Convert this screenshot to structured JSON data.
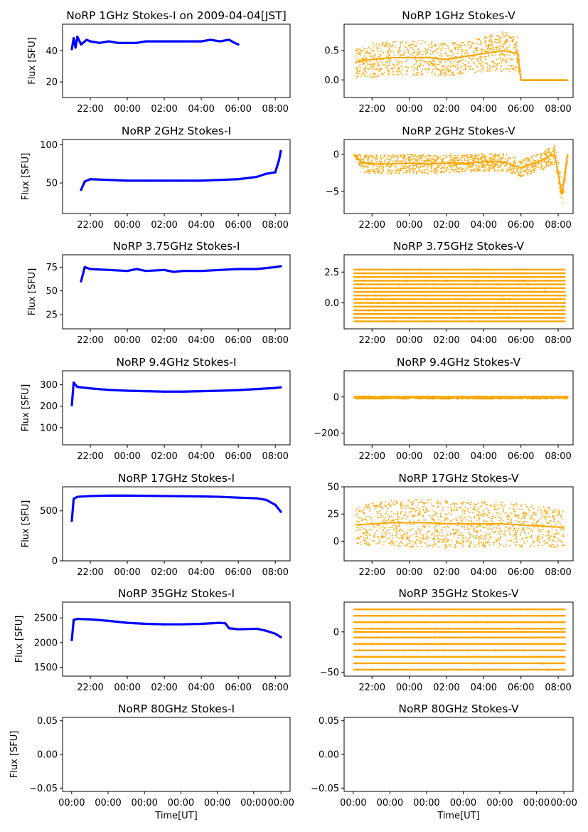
{
  "figure": {
    "date_label": "2009-04-04[JST]",
    "colors": {
      "stokes_i": "#0000ff",
      "stokes_v": "#ffa500"
    }
  },
  "chart_data": [
    {
      "type": "scatter",
      "id": "p1i",
      "title": "NoRP 1GHz Stokes-I on 2009-04-04[JST]",
      "ylabel": "Flux [SFU]",
      "xlabel": "",
      "xlim": [
        20.5,
        32.8
      ],
      "ylim": [
        10,
        57
      ],
      "yticks": [
        20,
        40
      ],
      "ytick_labels": [
        "20",
        "40"
      ],
      "xticks": [
        22,
        24,
        26,
        28,
        30,
        32
      ],
      "xtick_labels": [
        "22:00",
        "00:00",
        "02:00",
        "04:00",
        "06:00",
        "08:00"
      ],
      "series": [
        {
          "name": "Stokes-I",
          "color": "#0000ff",
          "x": [
            21.0,
            21.1,
            21.2,
            21.3,
            21.5,
            21.8,
            22.0,
            22.5,
            23.0,
            23.5,
            24.0,
            24.5,
            25.0,
            25.5,
            26.0,
            26.5,
            27.0,
            27.5,
            28.0,
            28.5,
            29.0,
            29.5,
            29.8,
            30.0
          ],
          "y": [
            41,
            48,
            42,
            49,
            44,
            47,
            46,
            45,
            46,
            45,
            45,
            45,
            46,
            46,
            46,
            46,
            46,
            46,
            46,
            47,
            46,
            47,
            45,
            44
          ]
        }
      ]
    },
    {
      "type": "scatter",
      "id": "p1v",
      "title": "NoRP 1GHz Stokes-V",
      "ylabel": "",
      "xlabel": "",
      "xlim": [
        20.5,
        32.8
      ],
      "ylim": [
        -0.3,
        0.95
      ],
      "yticks": [
        0,
        0.5
      ],
      "ytick_labels": [
        "0.0",
        "0.5"
      ],
      "xticks": [
        22,
        24,
        26,
        28,
        30,
        32
      ],
      "xtick_labels": [
        "22:00",
        "00:00",
        "02:00",
        "04:00",
        "06:00",
        "08:00"
      ],
      "series": [
        {
          "name": "Stokes-V",
          "color": "#ffa500",
          "x": [
            21.1,
            22.0,
            23.0,
            24.0,
            25.0,
            26.0,
            27.0,
            28.0,
            29.0,
            29.8,
            30.0,
            31.0,
            32.0,
            32.5
          ],
          "y": [
            0.3,
            0.35,
            0.38,
            0.38,
            0.38,
            0.35,
            0.4,
            0.45,
            0.5,
            0.45,
            0.0,
            0.0,
            0.0,
            0.0
          ],
          "spread": [
            0.25,
            0.3,
            0.3,
            0.3,
            0.3,
            0.28,
            0.28,
            0.3,
            0.35,
            0.3,
            0,
            0,
            0,
            0
          ]
        }
      ]
    },
    {
      "type": "scatter",
      "id": "p2i",
      "title": "NoRP 2GHz Stokes-I",
      "ylabel": "Flux [SFU]",
      "xlabel": "",
      "xlim": [
        20.5,
        32.8
      ],
      "ylim": [
        10,
        107
      ],
      "yticks": [
        50,
        100
      ],
      "ytick_labels": [
        "50",
        "100"
      ],
      "xticks": [
        22,
        24,
        26,
        28,
        30,
        32
      ],
      "xtick_labels": [
        "22:00",
        "00:00",
        "02:00",
        "04:00",
        "06:00",
        "08:00"
      ],
      "series": [
        {
          "name": "Stokes-I",
          "color": "#0000ff",
          "x": [
            21.5,
            21.7,
            22.0,
            23.0,
            24.0,
            25.0,
            26.0,
            27.0,
            28.0,
            29.0,
            30.0,
            31.0,
            31.5,
            32.0,
            32.2,
            32.3
          ],
          "y": [
            41,
            52,
            55,
            54,
            53,
            53,
            53,
            53,
            53,
            54,
            55,
            58,
            62,
            64,
            80,
            92
          ]
        }
      ]
    },
    {
      "type": "scatter",
      "id": "p2v",
      "title": "NoRP 2GHz Stokes-V",
      "ylabel": "",
      "xlabel": "",
      "xlim": [
        20.5,
        32.8
      ],
      "ylim": [
        -8,
        2
      ],
      "yticks": [
        -5,
        0
      ],
      "ytick_labels": [
        "−5",
        "0"
      ],
      "xticks": [
        22,
        24,
        26,
        28,
        30,
        32
      ],
      "xtick_labels": [
        "22:00",
        "00:00",
        "02:00",
        "04:00",
        "06:00",
        "08:00"
      ],
      "series": [
        {
          "name": "Stokes-V",
          "color": "#ffa500",
          "x": [
            21.0,
            21.5,
            22.0,
            23.0,
            24.0,
            25.0,
            26.0,
            27.0,
            28.0,
            29.0,
            30.0,
            31.0,
            31.5,
            31.8,
            32.0,
            32.2,
            32.5
          ],
          "y": [
            0.0,
            -1.2,
            -1.3,
            -1.3,
            -1.2,
            -1.3,
            -1.2,
            -1.2,
            -1.0,
            -1.0,
            -1.8,
            -1.0,
            -0.3,
            0.0,
            -2.5,
            -5.5,
            0.0
          ],
          "spread": [
            0,
            1.2,
            1.3,
            1.3,
            1.3,
            1.3,
            1.2,
            1.2,
            1.2,
            1.2,
            1.2,
            1.2,
            1.2,
            1.3,
            1.5,
            1.5,
            0
          ]
        }
      ]
    },
    {
      "type": "scatter",
      "id": "p3i",
      "title": "NoRP 3.75GHz Stokes-I",
      "ylabel": "Flux [SFU]",
      "xlabel": "",
      "xlim": [
        20.5,
        32.8
      ],
      "ylim": [
        10,
        88
      ],
      "yticks": [
        25,
        50,
        75
      ],
      "ytick_labels": [
        "25",
        "50",
        "75"
      ],
      "xticks": [
        22,
        24,
        26,
        28,
        30,
        32
      ],
      "xtick_labels": [
        "22:00",
        "00:00",
        "02:00",
        "04:00",
        "06:00",
        "08:00"
      ],
      "series": [
        {
          "name": "Stokes-I",
          "color": "#0000ff",
          "x": [
            21.5,
            21.7,
            22.0,
            23.0,
            24.0,
            24.5,
            25.0,
            26.0,
            26.5,
            27.0,
            28.0,
            29.0,
            30.0,
            31.0,
            32.0,
            32.3
          ],
          "y": [
            60,
            75,
            73,
            72,
            71,
            73,
            71,
            72,
            70,
            71,
            71,
            72,
            73,
            73,
            75,
            76
          ]
        }
      ]
    },
    {
      "type": "scatter",
      "id": "p3v",
      "title": "NoRP 3.75GHz Stokes-V",
      "ylabel": "",
      "xlabel": "",
      "xlim": [
        20.5,
        32.8
      ],
      "ylim": [
        -2.1,
        3.9
      ],
      "yticks": [
        0,
        2.5
      ],
      "ytick_labels": [
        "0.0",
        "2.5"
      ],
      "xticks": [
        22,
        24,
        26,
        28,
        30,
        32
      ],
      "xtick_labels": [
        "22:00",
        "00:00",
        "02:00",
        "04:00",
        "06:00",
        "08:00"
      ],
      "series": [
        {
          "name": "Stokes-V",
          "color": "#ffa500",
          "levels": [
            -1.5,
            -1.2,
            -0.9,
            -0.6,
            -0.3,
            0.0,
            0.3,
            0.6,
            0.9,
            1.2,
            1.5,
            1.8,
            2.1,
            2.4,
            2.7
          ],
          "x_from": 21.0,
          "x_to": 32.4
        }
      ]
    },
    {
      "type": "scatter",
      "id": "p4i",
      "title": "NoRP 9.4GHz Stokes-I",
      "ylabel": "Flux [SFU]",
      "xlabel": "",
      "xlim": [
        20.5,
        32.8
      ],
      "ylim": [
        20,
        365
      ],
      "yticks": [
        100,
        200,
        300
      ],
      "ytick_labels": [
        "100",
        "200",
        "300"
      ],
      "xticks": [
        22,
        24,
        26,
        28,
        30,
        32
      ],
      "xtick_labels": [
        "22:00",
        "00:00",
        "02:00",
        "04:00",
        "06:00",
        "08:00"
      ],
      "series": [
        {
          "name": "Stokes-I",
          "color": "#0000ff",
          "x": [
            21.0,
            21.1,
            21.3,
            22.0,
            23.0,
            24.0,
            25.0,
            26.0,
            27.0,
            28.0,
            29.0,
            30.0,
            31.0,
            32.0,
            32.3
          ],
          "y": [
            205,
            310,
            290,
            283,
            276,
            272,
            270,
            268,
            268,
            270,
            272,
            275,
            280,
            285,
            288
          ]
        }
      ]
    },
    {
      "type": "scatter",
      "id": "p4v",
      "title": "NoRP 9.4GHz Stokes-V",
      "ylabel": "",
      "xlabel": "",
      "xlim": [
        20.5,
        32.8
      ],
      "ylim": [
        -265,
        145
      ],
      "yticks": [
        -200,
        0
      ],
      "ytick_labels": [
        "−200",
        "0"
      ],
      "xticks": [
        22,
        24,
        26,
        28,
        30,
        32
      ],
      "xtick_labels": [
        "22:00",
        "00:00",
        "02:00",
        "04:00",
        "06:00",
        "08:00"
      ],
      "series": [
        {
          "name": "Stokes-V",
          "color": "#ffa500",
          "x": [
            21.0,
            22.0,
            24.0,
            26.0,
            28.0,
            30.0,
            32.0,
            32.5
          ],
          "y": [
            0,
            0,
            0,
            0,
            0,
            0,
            0,
            0
          ],
          "spread": [
            8,
            8,
            8,
            8,
            8,
            8,
            8,
            8
          ]
        }
      ]
    },
    {
      "type": "scatter",
      "id": "p5i",
      "title": "NoRP 17GHz Stokes-I",
      "ylabel": "Flux [SFU]",
      "xlabel": "",
      "xlim": [
        20.5,
        32.8
      ],
      "ylim": [
        0,
        740
      ],
      "yticks": [
        0,
        500
      ],
      "ytick_labels": [
        "0",
        "500"
      ],
      "xticks": [
        22,
        24,
        26,
        28,
        30,
        32
      ],
      "xtick_labels": [
        "22:00",
        "00:00",
        "02:00",
        "04:00",
        "06:00",
        "08:00"
      ],
      "series": [
        {
          "name": "Stokes-I",
          "color": "#0000ff",
          "x": [
            21.0,
            21.1,
            21.3,
            22.0,
            23.0,
            24.0,
            25.0,
            26.0,
            27.0,
            28.0,
            29.0,
            30.0,
            31.0,
            31.5,
            32.0,
            32.3
          ],
          "y": [
            400,
            620,
            640,
            648,
            652,
            652,
            650,
            648,
            646,
            644,
            640,
            632,
            625,
            610,
            560,
            490
          ]
        }
      ]
    },
    {
      "type": "scatter",
      "id": "p5v",
      "title": "NoRP 17GHz Stokes-V",
      "ylabel": "",
      "xlabel": "",
      "xlim": [
        20.5,
        32.8
      ],
      "ylim": [
        -18,
        50
      ],
      "yticks": [
        0,
        25,
        50
      ],
      "ytick_labels": [
        "0",
        "25",
        "50"
      ],
      "xticks": [
        22,
        24,
        26,
        28,
        30,
        32
      ],
      "xtick_labels": [
        "22:00",
        "00:00",
        "02:00",
        "04:00",
        "06:00",
        "08:00"
      ],
      "series": [
        {
          "name": "Stokes-V",
          "color": "#ffa500",
          "x": [
            21.1,
            22.0,
            23.0,
            24.0,
            25.0,
            26.0,
            27.0,
            28.0,
            29.0,
            30.0,
            31.0,
            32.0,
            32.3
          ],
          "y": [
            15,
            16,
            17,
            17,
            17,
            16,
            16,
            16,
            16,
            15,
            14,
            13,
            12
          ],
          "spread": [
            18,
            20,
            21,
            22,
            22,
            22,
            21,
            21,
            21,
            20,
            19,
            18,
            17
          ]
        }
      ]
    },
    {
      "type": "scatter",
      "id": "p6i",
      "title": "NoRP 35GHz Stokes-I",
      "ylabel": "Flux [SFU]",
      "xlabel": "",
      "xlim": [
        20.5,
        32.8
      ],
      "ylim": [
        1320,
        2820
      ],
      "yticks": [
        1500,
        2000,
        2500
      ],
      "ytick_labels": [
        "1500",
        "2000",
        "2500"
      ],
      "xticks": [
        22,
        24,
        26,
        28,
        30,
        32
      ],
      "xtick_labels": [
        "22:00",
        "00:00",
        "02:00",
        "04:00",
        "06:00",
        "08:00"
      ],
      "series": [
        {
          "name": "Stokes-I",
          "color": "#0000ff",
          "x": [
            21.0,
            21.1,
            21.3,
            22.0,
            23.0,
            24.0,
            25.0,
            26.0,
            27.0,
            28.0,
            29.0,
            29.3,
            29.5,
            30.0,
            31.0,
            31.5,
            32.0,
            32.3
          ],
          "y": [
            2050,
            2460,
            2480,
            2470,
            2440,
            2400,
            2380,
            2370,
            2370,
            2380,
            2400,
            2390,
            2290,
            2270,
            2280,
            2240,
            2180,
            2110
          ]
        }
      ]
    },
    {
      "type": "scatter",
      "id": "p6v",
      "title": "NoRP 35GHz Stokes-V",
      "ylabel": "",
      "xlabel": "",
      "xlim": [
        20.5,
        32.8
      ],
      "ylim": [
        -55,
        37
      ],
      "yticks": [
        -50,
        0
      ],
      "ytick_labels": [
        "−50",
        "0"
      ],
      "xticks": [
        22,
        24,
        26,
        28,
        30,
        32
      ],
      "xtick_labels": [
        "22:00",
        "00:00",
        "02:00",
        "04:00",
        "06:00",
        "08:00"
      ],
      "series": [
        {
          "name": "Stokes-V",
          "color": "#ffa500",
          "levels": [
            -47,
            -39,
            -31,
            -23,
            -15,
            -7,
            0,
            4,
            12,
            20,
            28
          ],
          "x_from": 21.0,
          "x_to": 32.4
        }
      ]
    },
    {
      "type": "scatter",
      "id": "p7i",
      "title": "NoRP 80GHz Stokes-I",
      "ylabel": "Flux [SFU]",
      "xlabel": "Time[UT]",
      "xlim": [
        0,
        1
      ],
      "ylim": [
        -0.055,
        0.055
      ],
      "yticks": [
        -0.05,
        0,
        0.05
      ],
      "ytick_labels": [
        "−0.05",
        "0.00",
        "0.05"
      ],
      "xticks": [
        0.04,
        0.2,
        0.36,
        0.52,
        0.68,
        0.84,
        0.96
      ],
      "xtick_labels": [
        "00:00",
        "00:00",
        "00:00",
        "00:00",
        "00:00",
        "00:00",
        "00:00"
      ],
      "series": []
    },
    {
      "type": "scatter",
      "id": "p7v",
      "title": "NoRP 80GHz Stokes-V",
      "ylabel": "",
      "xlabel": "Time[UT]",
      "xlim": [
        0,
        1
      ],
      "ylim": [
        -0.055,
        0.055
      ],
      "yticks": [
        -0.05,
        0,
        0.05
      ],
      "ytick_labels": [
        "−0.05",
        "0.00",
        "0.05"
      ],
      "xticks": [
        0.04,
        0.2,
        0.36,
        0.52,
        0.68,
        0.84,
        0.96
      ],
      "xtick_labels": [
        "00:00",
        "00:00",
        "00:00",
        "00:00",
        "00:00",
        "00:00",
        "00:00"
      ],
      "series": []
    }
  ]
}
